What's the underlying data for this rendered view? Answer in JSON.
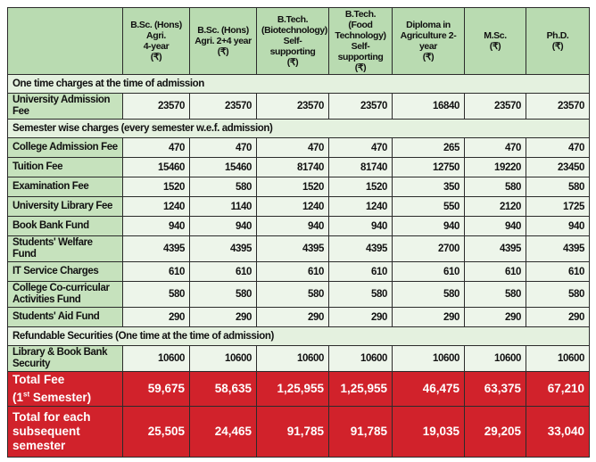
{
  "columns": [
    {
      "lines": [
        "B.Sc. (Hons)",
        "Agri.",
        "4-year",
        "(₹)"
      ]
    },
    {
      "lines": [
        "B.Sc. (Hons)",
        "Agri. 2+4 year",
        "(₹)"
      ]
    },
    {
      "lines": [
        "B.Tech.",
        "(Biotechnology)",
        "Self-supporting",
        "(₹)"
      ]
    },
    {
      "lines": [
        "B.Tech. (Food",
        "Technology)",
        "Self- supporting",
        "(₹)"
      ]
    },
    {
      "lines": [
        "Diploma in",
        "Agriculture 2-year",
        "(₹)"
      ]
    },
    {
      "lines": [
        "M.Sc.",
        "(₹)"
      ]
    },
    {
      "lines": [
        "Ph.D.",
        "(₹)"
      ]
    }
  ],
  "sections": [
    {
      "title": "One time charges at the time of admission",
      "rows": [
        {
          "label": "University Admission Fee",
          "values": [
            "23570",
            "23570",
            "23570",
            "23570",
            "16840",
            "23570",
            "23570"
          ]
        }
      ]
    },
    {
      "title": "Semester wise charges (every semester w.e.f. admission)",
      "rows": [
        {
          "label": "College Admission Fee",
          "values": [
            "470",
            "470",
            "470",
            "470",
            "265",
            "470",
            "470"
          ]
        },
        {
          "label": "Tuition Fee",
          "values": [
            "15460",
            "15460",
            "81740",
            "81740",
            "12750",
            "19220",
            "23450"
          ]
        },
        {
          "label": "Examination Fee",
          "values": [
            "1520",
            "580",
            "1520",
            "1520",
            "350",
            "580",
            "580"
          ]
        },
        {
          "label": "University Library Fee",
          "values": [
            "1240",
            "1140",
            "1240",
            "1240",
            "550",
            "2120",
            "1725"
          ]
        },
        {
          "label": "Book Bank Fund",
          "values": [
            "940",
            "940",
            "940",
            "940",
            "940",
            "940",
            "940"
          ]
        },
        {
          "label": "Students' Welfare Fund",
          "values": [
            "4395",
            "4395",
            "4395",
            "4395",
            "2700",
            "4395",
            "4395"
          ]
        },
        {
          "label": "IT Service Charges",
          "values": [
            "610",
            "610",
            "610",
            "610",
            "610",
            "610",
            "610"
          ]
        },
        {
          "label": "College Co-curricular Activities Fund",
          "values": [
            "580",
            "580",
            "580",
            "580",
            "580",
            "580",
            "580"
          ]
        },
        {
          "label": "Students' Aid Fund",
          "values": [
            "290",
            "290",
            "290",
            "290",
            "290",
            "290",
            "290"
          ]
        }
      ]
    },
    {
      "title": "Refundable Securities (One time at the time of admission)",
      "rows": [
        {
          "label": "Library & Book Bank Security",
          "values": [
            "10600",
            "10600",
            "10600",
            "10600",
            "10600",
            "10600",
            "10600"
          ]
        }
      ]
    }
  ],
  "totals": [
    {
      "label": "Total Fee",
      "label2": "(1st Semester)",
      "values": [
        "59,675",
        "58,635",
        "1,25,955",
        "1,25,955",
        "46,475",
        "63,375",
        "67,210"
      ]
    },
    {
      "label": "Total for each subsequent semester",
      "label2": "",
      "values": [
        "25,505",
        "24,465",
        "91,785",
        "91,785",
        "19,035",
        "29,205",
        "33,040"
      ]
    }
  ],
  "colors": {
    "header": "#b9dbb1",
    "label_cell": "#c6e2bd",
    "section": "#e4f1df",
    "cell": "#edf5ea",
    "total": "#d1222b"
  }
}
